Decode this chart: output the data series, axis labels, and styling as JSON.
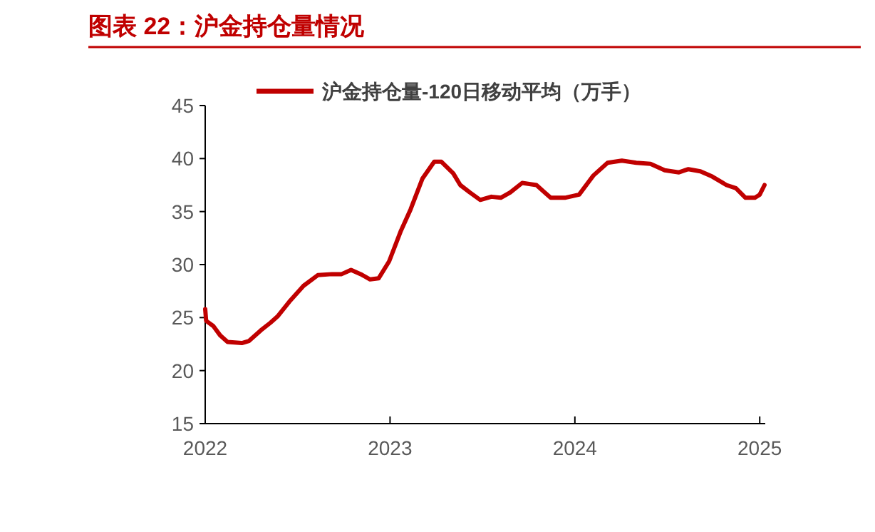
{
  "chart_data": {
    "type": "line",
    "title": "图表 22：沪金持仓量情况",
    "legend": "top",
    "x": [
      2022.0,
      2022.005,
      2022.044,
      2022.082,
      2022.121,
      2022.198,
      2022.237,
      2022.301,
      2022.352,
      2022.391,
      2022.455,
      2022.532,
      2022.609,
      2022.686,
      2022.738,
      2022.789,
      2022.841,
      2022.892,
      2022.938,
      2022.995,
      2023.059,
      2023.111,
      2023.175,
      2023.239,
      2023.278,
      2023.342,
      2023.38,
      2023.432,
      2023.488,
      2023.548,
      2023.599,
      2023.65,
      2023.715,
      2023.792,
      2023.869,
      2023.946,
      2024.023,
      2024.1,
      2024.177,
      2024.254,
      2024.332,
      2024.409,
      2024.486,
      2024.563,
      2024.614,
      2024.679,
      2024.743,
      2024.82,
      2024.871,
      2024.923,
      2024.974,
      2025.0,
      2025.026
    ],
    "series": [
      {
        "name": "沪金持仓量-120日移动平均（万手）",
        "color": "#c00000",
        "values": [
          25.8,
          24.7,
          24.2,
          23.3,
          22.7,
          22.6,
          22.8,
          23.8,
          24.5,
          25.1,
          26.5,
          28.0,
          29.0,
          29.1,
          29.1,
          29.5,
          29.1,
          28.6,
          28.7,
          30.3,
          33.2,
          35.2,
          38.1,
          39.7,
          39.7,
          38.6,
          37.5,
          36.8,
          36.1,
          36.4,
          36.3,
          36.8,
          37.7,
          37.5,
          36.3,
          36.3,
          36.6,
          38.4,
          39.6,
          39.8,
          39.6,
          39.5,
          38.9,
          38.7,
          39.0,
          38.8,
          38.3,
          37.5,
          37.2,
          36.3,
          36.3,
          36.6,
          37.5
        ]
      }
    ],
    "xlim": [
      2022,
      2025.03
    ],
    "xticks": [
      {
        "value": 2022,
        "label": "2022"
      },
      {
        "value": 2023,
        "label": "2023"
      },
      {
        "value": 2024,
        "label": "2024"
      },
      {
        "value": 2025,
        "label": "2025"
      }
    ],
    "ylim": [
      15,
      45
    ],
    "yticks": [
      15,
      20,
      25,
      30,
      35,
      40,
      45
    ]
  }
}
